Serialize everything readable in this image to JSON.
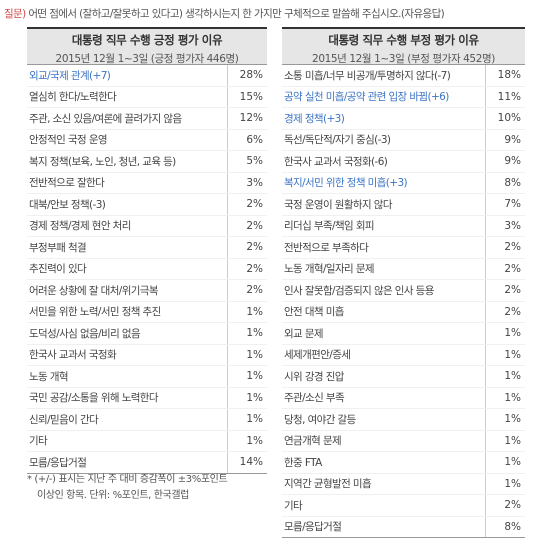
{
  "question": {
    "label": "질문)",
    "text": " 어떤 점에서 (잘하고/잘못하고 있다고) 생각하시는지 한 가지만 구체적으로 말씀해 주십시오.(자유응답)"
  },
  "positive": {
    "title": "대통령 직무 수행 긍정 평가 이유",
    "subtitle": "2015년 12월 1~3일 (긍정 평가자 446명)",
    "rows": [
      {
        "label": "외교/국제 관계(+7)",
        "value": "28%",
        "highlight": true
      },
      {
        "label": "열심히 한다/노력한다",
        "value": "15%"
      },
      {
        "label": "주관, 소신 있음/여론에 끌려가지 않음",
        "value": "12%"
      },
      {
        "label": "안정적인 국정 운영",
        "value": "6%"
      },
      {
        "label": "복지 정책(보육, 노인, 청년, 교육 등)",
        "value": "5%"
      },
      {
        "label": "전반적으로 잘한다",
        "value": "3%"
      },
      {
        "label": "대북/안보 정책(-3)",
        "value": "2%"
      },
      {
        "label": "경제 정책/경제 현안 처리",
        "value": "2%"
      },
      {
        "label": "부정부패 척결",
        "value": "2%"
      },
      {
        "label": "추진력이 있다",
        "value": "2%"
      },
      {
        "label": "어려운 상황에 잘 대처/위기극복",
        "value": "2%"
      },
      {
        "label": "서민을 위한 노력/서민 정책 추진",
        "value": "1%"
      },
      {
        "label": "도덕성/사심 없음/비리 없음",
        "value": "1%"
      },
      {
        "label": "한국사 교과서 국정화",
        "value": "1%"
      },
      {
        "label": "노동 개혁",
        "value": "1%"
      },
      {
        "label": "국민 공감/소통을 위해 노력한다",
        "value": "1%"
      },
      {
        "label": "신뢰/믿음이 간다",
        "value": "1%"
      },
      {
        "label": "기타",
        "value": "1%"
      },
      {
        "label": "모름/응답거절",
        "value": "14%"
      }
    ]
  },
  "negative": {
    "title": "대통령 직무 수행 부정 평가 이유",
    "subtitle": "2015년 12월 1~3일 (부정 평가자 452명)",
    "rows": [
      {
        "label": "소통 미흡/너무 비공개/투명하지 않다(-7)",
        "value": "18%"
      },
      {
        "label": "공약 실천 미흡/공약 관련 입장 바뀜(+6)",
        "value": "11%",
        "highlight": true
      },
      {
        "label": "경제 정책(+3)",
        "value": "10%",
        "highlight": true
      },
      {
        "label": "독선/독단적/자기 중심(-3)",
        "value": "9%"
      },
      {
        "label": "한국사 교과서 국정화(-6)",
        "value": "9%"
      },
      {
        "label": "복지/서민 위한 정책 미흡(+3)",
        "value": "8%",
        "highlight": true
      },
      {
        "label": "국정 운영이 원활하지 않다",
        "value": "7%"
      },
      {
        "label": "리더십 부족/책임 회피",
        "value": "3%"
      },
      {
        "label": "전반적으로 부족하다",
        "value": "2%"
      },
      {
        "label": "노동 개혁/일자리 문제",
        "value": "2%"
      },
      {
        "label": "인사 잘못함/검증되지 않은 인사 등용",
        "value": "2%"
      },
      {
        "label": "안전 대책 미흡",
        "value": "2%"
      },
      {
        "label": "외교 문제",
        "value": "1%"
      },
      {
        "label": "세제개편안/증세",
        "value": "1%"
      },
      {
        "label": "시위 강경 진압",
        "value": "1%"
      },
      {
        "label": "주관/소신 부족",
        "value": "1%"
      },
      {
        "label": "당청, 여야간 갈등",
        "value": "1%"
      },
      {
        "label": "연금개혁 문제",
        "value": "1%"
      },
      {
        "label": "한중 FTA",
        "value": "1%"
      },
      {
        "label": "지역간 균형발전 미흡",
        "value": "1%"
      },
      {
        "label": "기타",
        "value": "2%"
      },
      {
        "label": "모름/응답거절",
        "value": "8%"
      }
    ]
  },
  "note": {
    "line1": "* (+/-) 표시는 지난 주 대비 증감폭이 ±3%포인트",
    "line2": "이상인 항목. 단위: %포인트, 한국갤럽"
  },
  "colors": {
    "highlight": "#3c74c6",
    "question_label": "#d04a4a",
    "header_bg": "#e6e6e6"
  }
}
